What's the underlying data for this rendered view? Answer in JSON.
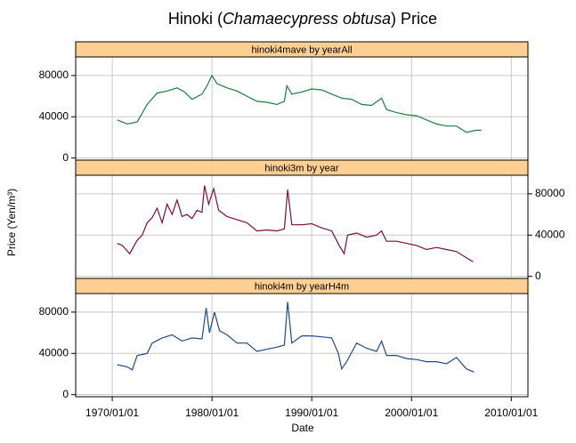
{
  "chart_data": {
    "type": "line",
    "title": [
      "Hinoki (",
      "Chamaecypress obtusa",
      ") Price"
    ],
    "x_label": "Date",
    "y_label": "Price (Yen/m³)",
    "xlim": [
      "1966/05/01",
      "2011/09/01"
    ],
    "xticks": [
      "1970/01/01",
      "1980/01/01",
      "1990/01/01",
      "2000/01/01",
      "2010/01/01"
    ],
    "grid": true,
    "panels": [
      {
        "type": "line",
        "strip": "hinoki4mave by yearAll",
        "color": "#1b7f3b",
        "y_axis_side": "left",
        "ylim": [
          -2000,
          98000
        ],
        "yticks": [
          0,
          40000,
          80000
        ],
        "x": [
          "1970/07/01",
          "1971/07/01",
          "1972/07/01",
          "1973/07/01",
          "1974/07/01",
          "1975/07/01",
          "1976/07/01",
          "1977/04/01",
          "1978/01/01",
          "1979/01/01",
          "1979/07/01",
          "1980/01/01",
          "1980/07/01",
          "1981/07/01",
          "1982/07/01",
          "1983/07/01",
          "1984/07/01",
          "1985/07/01",
          "1986/07/01",
          "1987/04/01",
          "1987/07/01",
          "1988/01/01",
          "1989/01/01",
          "1990/01/01",
          "1991/01/01",
          "1992/01/01",
          "1993/01/01",
          "1994/01/01",
          "1995/01/01",
          "1996/01/01",
          "1997/01/01",
          "1997/07/01",
          "1998/07/01",
          "1999/07/01",
          "2000/07/01",
          "2001/07/01",
          "2002/07/01",
          "2003/07/01",
          "2004/07/01",
          "2005/07/01",
          "2006/07/01",
          "2007/01/01"
        ],
        "values": [
          37000,
          33000,
          35000,
          52000,
          63000,
          65000,
          68000,
          64000,
          57000,
          62000,
          70000,
          80000,
          72000,
          68000,
          65000,
          60000,
          55000,
          54000,
          52000,
          55000,
          70000,
          62000,
          64000,
          67000,
          66000,
          62000,
          58000,
          57000,
          52000,
          51000,
          58000,
          47000,
          44000,
          42000,
          41000,
          37000,
          33000,
          31000,
          31000,
          25000,
          27000,
          27000
        ]
      },
      {
        "type": "line",
        "strip": "hinoki3m by year",
        "color": "#7a0f35",
        "y_axis_side": "right",
        "ylim": [
          -2000,
          98000
        ],
        "yticks": [
          0,
          40000,
          80000
        ],
        "x": [
          "1970/07/01",
          "1971/01/01",
          "1971/10/01",
          "1972/07/01",
          "1973/01/01",
          "1973/07/01",
          "1974/01/01",
          "1974/07/01",
          "1975/01/01",
          "1975/07/01",
          "1976/01/01",
          "1976/07/01",
          "1977/01/01",
          "1977/07/01",
          "1978/01/01",
          "1978/07/01",
          "1979/01/01",
          "1979/04/01",
          "1979/09/01",
          "1980/03/01",
          "1980/09/01",
          "1981/07/01",
          "1982/07/01",
          "1983/07/01",
          "1984/07/01",
          "1985/07/01",
          "1986/07/01",
          "1987/04/01",
          "1987/08/01",
          "1988/01/01",
          "1989/01/01",
          "1990/01/01",
          "1991/01/01",
          "1992/01/01",
          "1992/10/01",
          "1993/04/01",
          "1993/08/01",
          "1994/07/01",
          "1995/07/01",
          "1996/07/01",
          "1997/01/01",
          "1997/07/01",
          "1998/07/01",
          "1999/07/01",
          "2000/07/01",
          "2001/07/01",
          "2002/07/01",
          "2003/07/01",
          "2004/07/01",
          "2005/07/01",
          "2006/03/01"
        ],
        "values": [
          32000,
          30000,
          22000,
          35000,
          40000,
          52000,
          57000,
          66000,
          52000,
          70000,
          60000,
          74000,
          58000,
          60000,
          56000,
          64000,
          62000,
          88000,
          70000,
          85000,
          64000,
          58000,
          55000,
          52000,
          44000,
          45000,
          44000,
          46000,
          84000,
          50000,
          50000,
          51000,
          47000,
          44000,
          30000,
          22000,
          40000,
          42000,
          38000,
          40000,
          44000,
          34000,
          34000,
          32000,
          30000,
          26000,
          28000,
          26000,
          24000,
          18000,
          14000
        ]
      },
      {
        "type": "line",
        "strip": "hinoki4m by yearH4m",
        "color": "#1f4a8a",
        "y_axis_side": "left",
        "ylim": [
          -2000,
          98000
        ],
        "yticks": [
          0,
          40000,
          80000
        ],
        "x": [
          "1970/07/01",
          "1971/07/01",
          "1972/01/01",
          "1972/07/01",
          "1973/07/01",
          "1974/01/01",
          "1975/01/01",
          "1976/01/01",
          "1977/01/01",
          "1978/01/01",
          "1979/01/01",
          "1979/06/01",
          "1979/10/01",
          "1980/04/01",
          "1980/10/01",
          "1981/07/01",
          "1982/07/01",
          "1983/07/01",
          "1984/07/01",
          "1985/07/01",
          "1986/07/01",
          "1987/04/01",
          "1987/08/01",
          "1988/01/01",
          "1989/01/01",
          "1990/01/01",
          "1991/01/01",
          "1992/01/01",
          "1992/09/01",
          "1993/01/01",
          "1993/07/01",
          "1994/07/01",
          "1995/07/01",
          "1996/07/01",
          "1997/01/01",
          "1997/07/01",
          "1998/07/01",
          "1999/07/01",
          "2000/07/01",
          "2001/07/01",
          "2002/07/01",
          "2003/07/01",
          "2004/07/01",
          "2005/07/01",
          "2006/04/01"
        ],
        "values": [
          29000,
          27000,
          24000,
          38000,
          40000,
          50000,
          55000,
          58000,
          52000,
          55000,
          54000,
          84000,
          60000,
          80000,
          62000,
          58000,
          50000,
          50000,
          42000,
          44000,
          46000,
          48000,
          90000,
          50000,
          57000,
          57000,
          56000,
          55000,
          40000,
          25000,
          32000,
          50000,
          45000,
          42000,
          52000,
          38000,
          38000,
          35000,
          34000,
          32000,
          32000,
          30000,
          36000,
          25000,
          22000
        ]
      }
    ]
  }
}
